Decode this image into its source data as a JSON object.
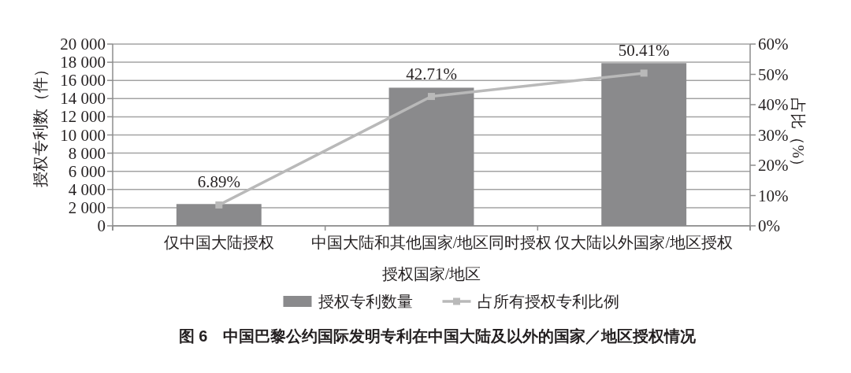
{
  "chart_data": {
    "type": "bar",
    "title": "图 6　中国巴黎公约国际发明专利在中国大陆及以外的国家／地区授权情况",
    "xlabel": "授权国家/地区",
    "ylabel": "授权专利数（件）",
    "y2label": "占比（%）",
    "categories": [
      "仅中国大陆授权",
      "中国大陆和其他国家/地区同时授权",
      "仅大陆以外国家/地区授权"
    ],
    "series": [
      {
        "name": "授权专利数量",
        "color": "#8a8a8c",
        "values": [
          2400,
          15200,
          17900
        ]
      },
      {
        "name": "占所有授权专利比例",
        "type": "line",
        "axis": "y2",
        "color": "#b9b9b9",
        "marker": "square",
        "values": [
          6.89,
          42.71,
          50.41
        ],
        "value_labels": [
          "6.89%",
          "42.71%",
          "50.41%"
        ]
      }
    ],
    "ylim": [
      0,
      20000
    ],
    "yticks": [
      0,
      {
        "value": 2000,
        "label": "2 000"
      },
      {
        "value": 4000,
        "label": "4 000"
      },
      {
        "value": 6000,
        "label": "6 000"
      },
      {
        "value": 8000,
        "label": "8 000"
      },
      {
        "value": 10000,
        "label": "10 000"
      },
      {
        "value": 12000,
        "label": "12 000"
      },
      {
        "value": 14000,
        "label": "14 000"
      },
      {
        "value": 16000,
        "label": "16 000"
      },
      {
        "value": 18000,
        "label": "18 000"
      },
      {
        "value": 20000,
        "label": "20 000"
      }
    ],
    "y2lim": [
      0,
      60
    ],
    "y2ticks": [
      {
        "value": 0,
        "label": "0%"
      },
      {
        "value": 10,
        "label": "10%"
      },
      {
        "value": 20,
        "label": "20%"
      },
      {
        "value": 30,
        "label": "30%"
      },
      {
        "value": 40,
        "label": "40%"
      },
      {
        "value": 50,
        "label": "50%"
      },
      {
        "value": 60,
        "label": "60%"
      }
    ],
    "grid": "y",
    "legend": "bottom"
  }
}
